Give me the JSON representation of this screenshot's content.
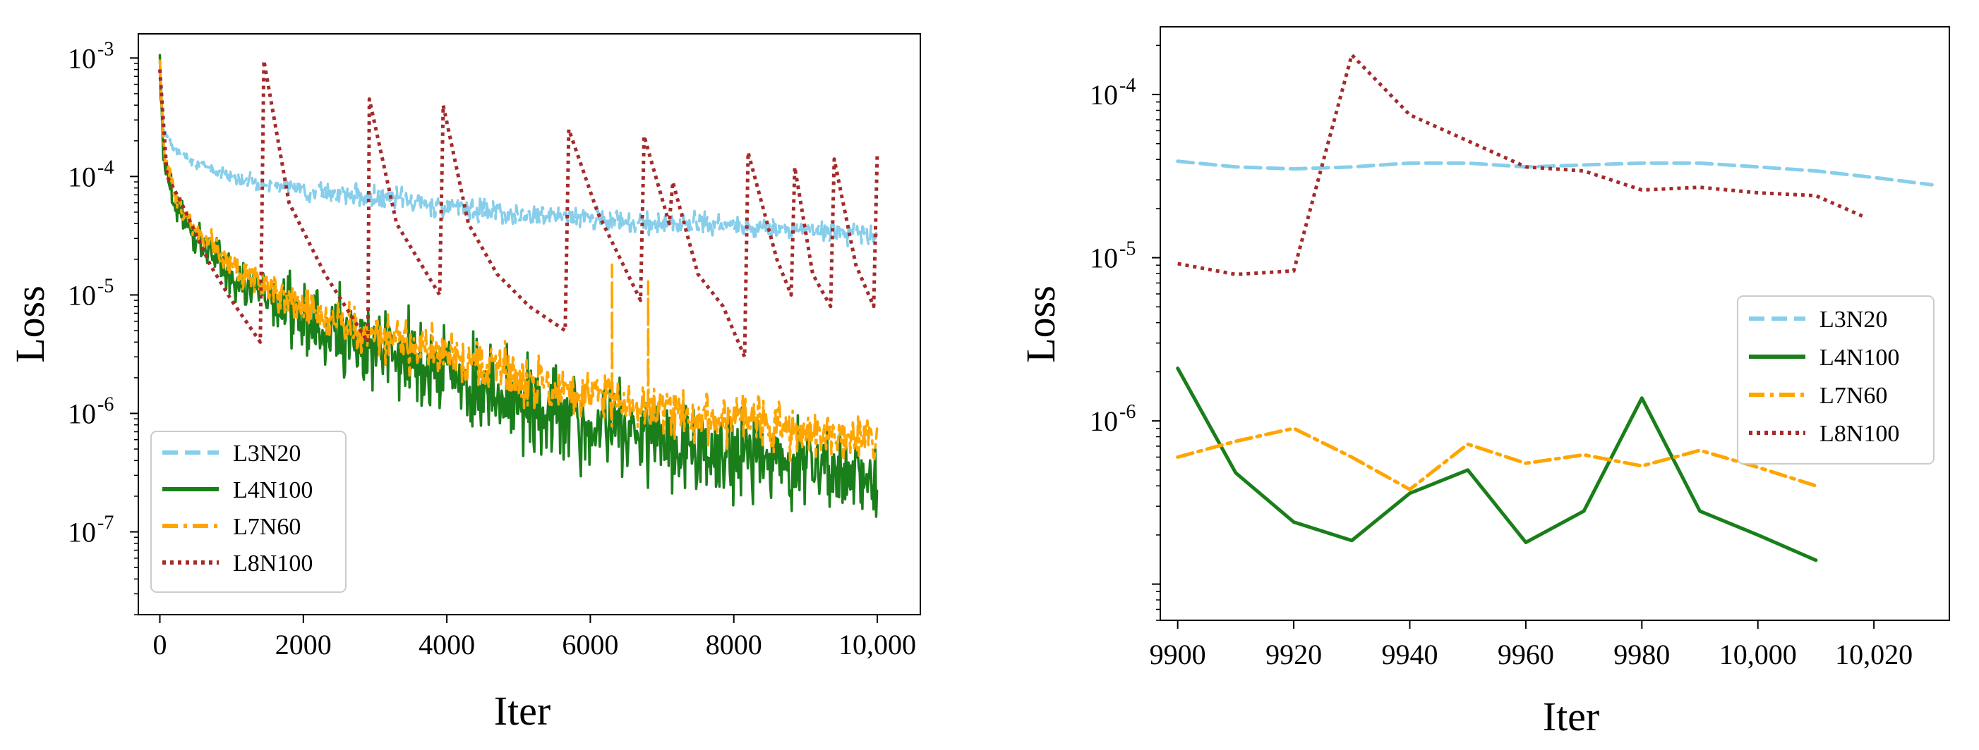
{
  "chart_data": [
    {
      "type": "line",
      "xlabel": "Iter",
      "ylabel": "Loss",
      "yscale": "log",
      "xlim": [
        -300,
        10600
      ],
      "ylim": [
        2e-08,
        0.0016
      ],
      "xticks": [
        0,
        2000,
        4000,
        6000,
        8000,
        10000
      ],
      "xtick_labels": [
        "0",
        "2000",
        "4000",
        "6000",
        "8000",
        "10,000"
      ],
      "ytick_labels": [
        {
          "base": "10",
          "exp": "-3"
        },
        {
          "base": "10",
          "exp": "-4"
        },
        {
          "base": "10",
          "exp": "-5"
        },
        {
          "base": "10",
          "exp": "-6"
        },
        {
          "base": "10",
          "exp": "-7"
        }
      ],
      "legend_position": "lower-left",
      "legend": [
        "L3N20",
        "L4N100",
        "L7N60",
        "L8N100"
      ],
      "series": [
        {
          "name": "L3N20",
          "color": "#87ceeb",
          "style": "dashed",
          "x": [
            0,
            50,
            200,
            500,
            1000,
            1500,
            2000,
            3000,
            4000,
            5000,
            6000,
            7000,
            8000,
            9000,
            10000
          ],
          "y": [
            0.0009,
            0.00025,
            0.00017,
            0.00013,
            0.0001,
            8.6e-05,
            7.8e-05,
            6.6e-05,
            5.6e-05,
            4.9e-05,
            4.4e-05,
            4e-05,
            3.8e-05,
            3.6e-05,
            3.3e-05
          ],
          "noise": 0.12
        },
        {
          "name": "L4N100",
          "color": "#1a7f1a",
          "style": "solid",
          "x": [
            0,
            50,
            200,
            500,
            1000,
            1500,
            2000,
            3000,
            4000,
            5000,
            6000,
            7000,
            8000,
            9000,
            10000
          ],
          "y": [
            0.001,
            0.00015,
            6e-05,
            3e-05,
            1.5e-05,
            9e-06,
            6e-06,
            3.5e-06,
            2e-06,
            1.3e-06,
            8.5e-07,
            6e-07,
            4.5e-07,
            3.5e-07,
            3e-07
          ],
          "noise": 0.5
        },
        {
          "name": "L7N60",
          "color": "#ffa500",
          "style": "dashdot",
          "x": [
            0,
            50,
            200,
            500,
            1000,
            1500,
            2000,
            3000,
            4000,
            5000,
            6000,
            7000,
            8000,
            9000,
            10000
          ],
          "y": [
            0.00095,
            0.00018,
            7e-05,
            3.5e-05,
            1.8e-05,
            1.1e-05,
            8e-06,
            4.5e-06,
            3e-06,
            2e-06,
            1.4e-06,
            1.1e-06,
            8.5e-07,
            7e-07,
            6e-07
          ],
          "noise": 0.28,
          "spikes": [
            {
              "x": 6300,
              "y": 1.8e-05
            },
            {
              "x": 6800,
              "y": 1.3e-05
            }
          ]
        },
        {
          "name": "L8N100",
          "color": "#a52a2a",
          "style": "dotted",
          "x": [
            0,
            100,
            300,
            700,
            1000,
            1400,
            1450,
            1800,
            2300,
            2900,
            2920,
            3300,
            3900,
            3950,
            4300,
            4700,
            5150,
            5650,
            5700,
            6100,
            6700,
            6750,
            7100,
            7150,
            7500,
            7850,
            8150,
            8200,
            8600,
            8800,
            8850,
            9100,
            9350,
            9400,
            9700,
            9950,
            10000
          ],
          "y": [
            0.0008,
            0.0001,
            6e-05,
            1.8e-05,
            9e-06,
            4e-06,
            0.00095,
            6e-05,
            1.5e-05,
            4e-06,
            0.00045,
            4e-05,
            1e-05,
            0.0004,
            4e-05,
            1.5e-05,
            8e-06,
            5e-06,
            0.00025,
            5e-05,
            9e-06,
            0.00022,
            4e-05,
            9e-05,
            1.5e-05,
            8e-06,
            3e-06,
            0.00016,
            2e-05,
            1e-05,
            0.00012,
            1.5e-05,
            8e-06,
            0.00014,
            1.8e-05,
            8e-06,
            0.00016
          ],
          "noise": 0
        }
      ]
    },
    {
      "type": "line",
      "xlabel": "Iter",
      "ylabel": "Loss",
      "yscale": "log",
      "xlim": [
        9897,
        10033
      ],
      "ylim": [
        6e-08,
        0.00026
      ],
      "xticks": [
        9900,
        9920,
        9940,
        9960,
        9980,
        10000,
        10020
      ],
      "xtick_labels": [
        "9900",
        "9920",
        "9940",
        "9960",
        "9980",
        "10,000",
        "10,020"
      ],
      "ytick_labels": [
        {
          "base": "10",
          "exp": "-4"
        },
        {
          "base": "10",
          "exp": "-5"
        },
        {
          "base": "10",
          "exp": "-6"
        }
      ],
      "legend_position": "center-right",
      "legend": [
        "L3N20",
        "L4N100",
        "L7N60",
        "L8N100"
      ],
      "series": [
        {
          "name": "L3N20",
          "color": "#87ceeb",
          "style": "dashed",
          "x": [
            9900,
            9910,
            9920,
            9930,
            9940,
            9950,
            9960,
            9970,
            9980,
            9990,
            10000,
            10010,
            10020,
            10030
          ],
          "y": [
            3.9e-05,
            3.6e-05,
            3.5e-05,
            3.6e-05,
            3.8e-05,
            3.8e-05,
            3.6e-05,
            3.7e-05,
            3.8e-05,
            3.8e-05,
            3.6e-05,
            3.4e-05,
            3.1e-05,
            2.8e-05
          ]
        },
        {
          "name": "L4N100",
          "color": "#1a7f1a",
          "style": "solid",
          "x": [
            9900,
            9910,
            9920,
            9930,
            9940,
            9950,
            9960,
            9970,
            9980,
            9990,
            10000,
            10010
          ],
          "y": [
            2.1e-06,
            4.8e-07,
            2.4e-07,
            1.85e-07,
            3.6e-07,
            5e-07,
            1.8e-07,
            2.8e-07,
            1.38e-06,
            2.8e-07,
            2e-07,
            1.4e-07
          ]
        },
        {
          "name": "L7N60",
          "color": "#ffa500",
          "style": "dashdot",
          "x": [
            9900,
            9910,
            9920,
            9930,
            9940,
            9950,
            9960,
            9970,
            9980,
            9990,
            10000,
            10010
          ],
          "y": [
            6e-07,
            7.5e-07,
            9e-07,
            6e-07,
            3.8e-07,
            7.2e-07,
            5.5e-07,
            6.2e-07,
            5.3e-07,
            6.6e-07,
            5.2e-07,
            4e-07
          ]
        },
        {
          "name": "L8N100",
          "color": "#a52a2a",
          "style": "dotted",
          "x": [
            9900,
            9910,
            9920,
            9930,
            9940,
            9950,
            9960,
            9970,
            9980,
            9990,
            10000,
            10010,
            10018
          ],
          "y": [
            9.2e-06,
            7.9e-06,
            8.3e-06,
            0.000175,
            7.5e-05,
            5.2e-05,
            3.6e-05,
            3.4e-05,
            2.6e-05,
            2.7e-05,
            2.5e-05,
            2.4e-05,
            1.8e-05
          ]
        }
      ]
    }
  ]
}
